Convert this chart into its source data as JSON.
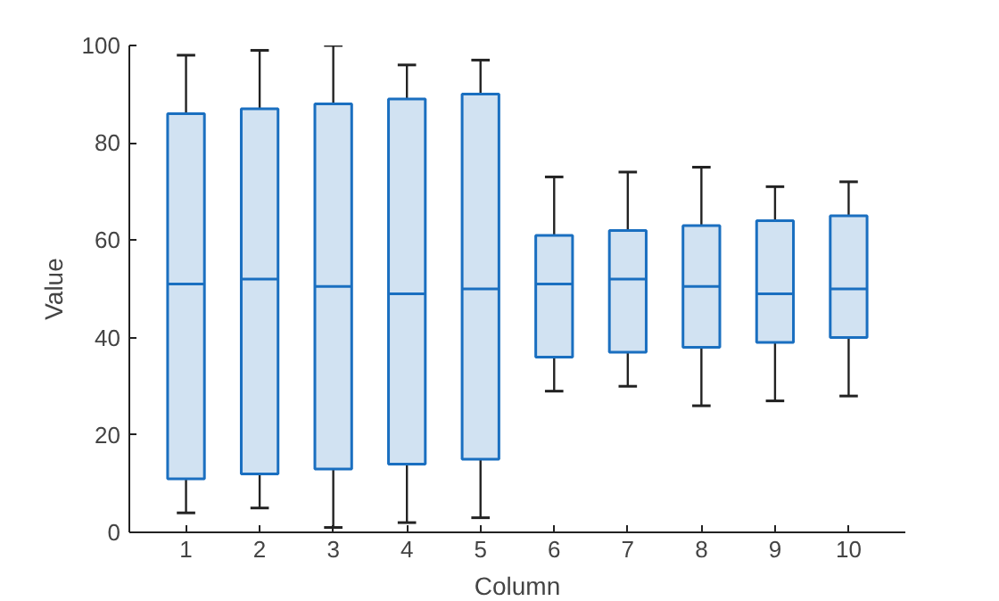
{
  "chart_data": {
    "type": "box",
    "xlabel": "Column",
    "ylabel": "Value",
    "categories": [
      "1",
      "2",
      "3",
      "4",
      "5",
      "6",
      "7",
      "8",
      "9",
      "10"
    ],
    "ylim": [
      0,
      100
    ],
    "yticks": [
      0,
      20,
      40,
      60,
      80,
      100
    ],
    "grid": false,
    "series": [
      {
        "color": "#1a6fc0",
        "boxes": [
          {
            "low": 4,
            "q1": 11,
            "median": 51,
            "q3": 86,
            "high": 98
          },
          {
            "low": 5,
            "q1": 12,
            "median": 52,
            "q3": 87,
            "high": 99
          },
          {
            "low": 1,
            "q1": 13,
            "median": 50.5,
            "q3": 88,
            "high": 100
          },
          {
            "low": 2,
            "q1": 14,
            "median": 49,
            "q3": 89,
            "high": 96
          },
          {
            "low": 3,
            "q1": 15,
            "median": 50,
            "q3": 90,
            "high": 97
          },
          {
            "low": 29,
            "q1": 36,
            "median": 51,
            "q3": 61,
            "high": 73
          },
          {
            "low": 30,
            "q1": 37,
            "median": 52,
            "q3": 62,
            "high": 74
          },
          {
            "low": 26,
            "q1": 38,
            "median": 50.5,
            "q3": 63,
            "high": 75
          },
          {
            "low": 27,
            "q1": 39,
            "median": 49,
            "q3": 64,
            "high": 71
          },
          {
            "low": 28,
            "q1": 40,
            "median": 50,
            "q3": 65,
            "high": 72
          }
        ]
      }
    ]
  }
}
